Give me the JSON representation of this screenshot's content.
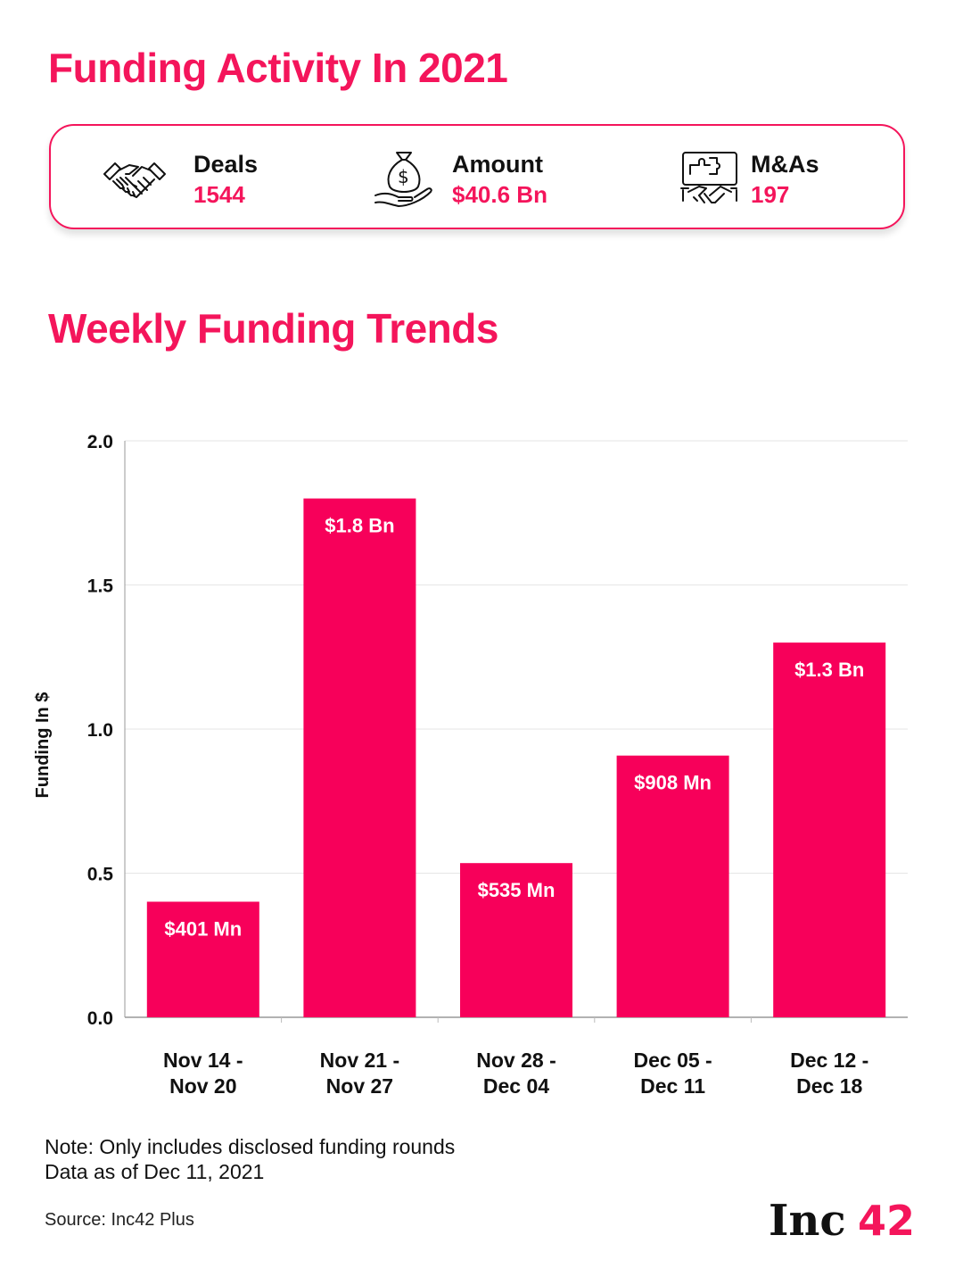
{
  "header": {
    "title": "Funding Activity In 2021"
  },
  "stats": [
    {
      "label": "Deals",
      "value": "1544",
      "icon": "handshake-icon"
    },
    {
      "label": "Amount",
      "value": "$40.6 Bn",
      "icon": "money-bag-hand-icon"
    },
    {
      "label": "M&As",
      "value": "197",
      "icon": "merger-handshake-icon"
    }
  ],
  "section": {
    "title": "Weekly Funding Trends"
  },
  "chart_data": {
    "type": "bar",
    "title": "Weekly Funding Trends",
    "categories": [
      [
        "Nov 14 -",
        "Nov 20"
      ],
      [
        "Nov 21 -",
        "Nov 27"
      ],
      [
        "Nov 28 -",
        "Dec 04"
      ],
      [
        "Dec 05 -",
        "Dec 11"
      ],
      [
        "Dec 12 -",
        "Dec 18"
      ]
    ],
    "values": [
      0.401,
      1.8,
      0.535,
      0.908,
      1.3
    ],
    "data_labels": [
      "$401 Mn",
      "$1.8 Bn",
      "$535 Mn",
      "$908 Mn",
      "$1.3 Bn"
    ],
    "ylabel": "Funding In $",
    "xlabel": "",
    "ylim": [
      0,
      2.0
    ],
    "yticks": [
      "0.0",
      "0.5",
      "1.0",
      "1.5",
      "2.0"
    ],
    "grid": true,
    "bar_color": "#f7005a"
  },
  "notes": [
    "Note: Only includes disclosed funding rounds",
    "Data as of Dec 11, 2021"
  ],
  "source": "Source: Inc42 Plus",
  "logo": {
    "text": "Inc42",
    "main": "Inc",
    "accent": "42"
  },
  "colors": {
    "accent": "#f4155b",
    "bar": "#f7005a",
    "grid": "#e6e6e6"
  }
}
